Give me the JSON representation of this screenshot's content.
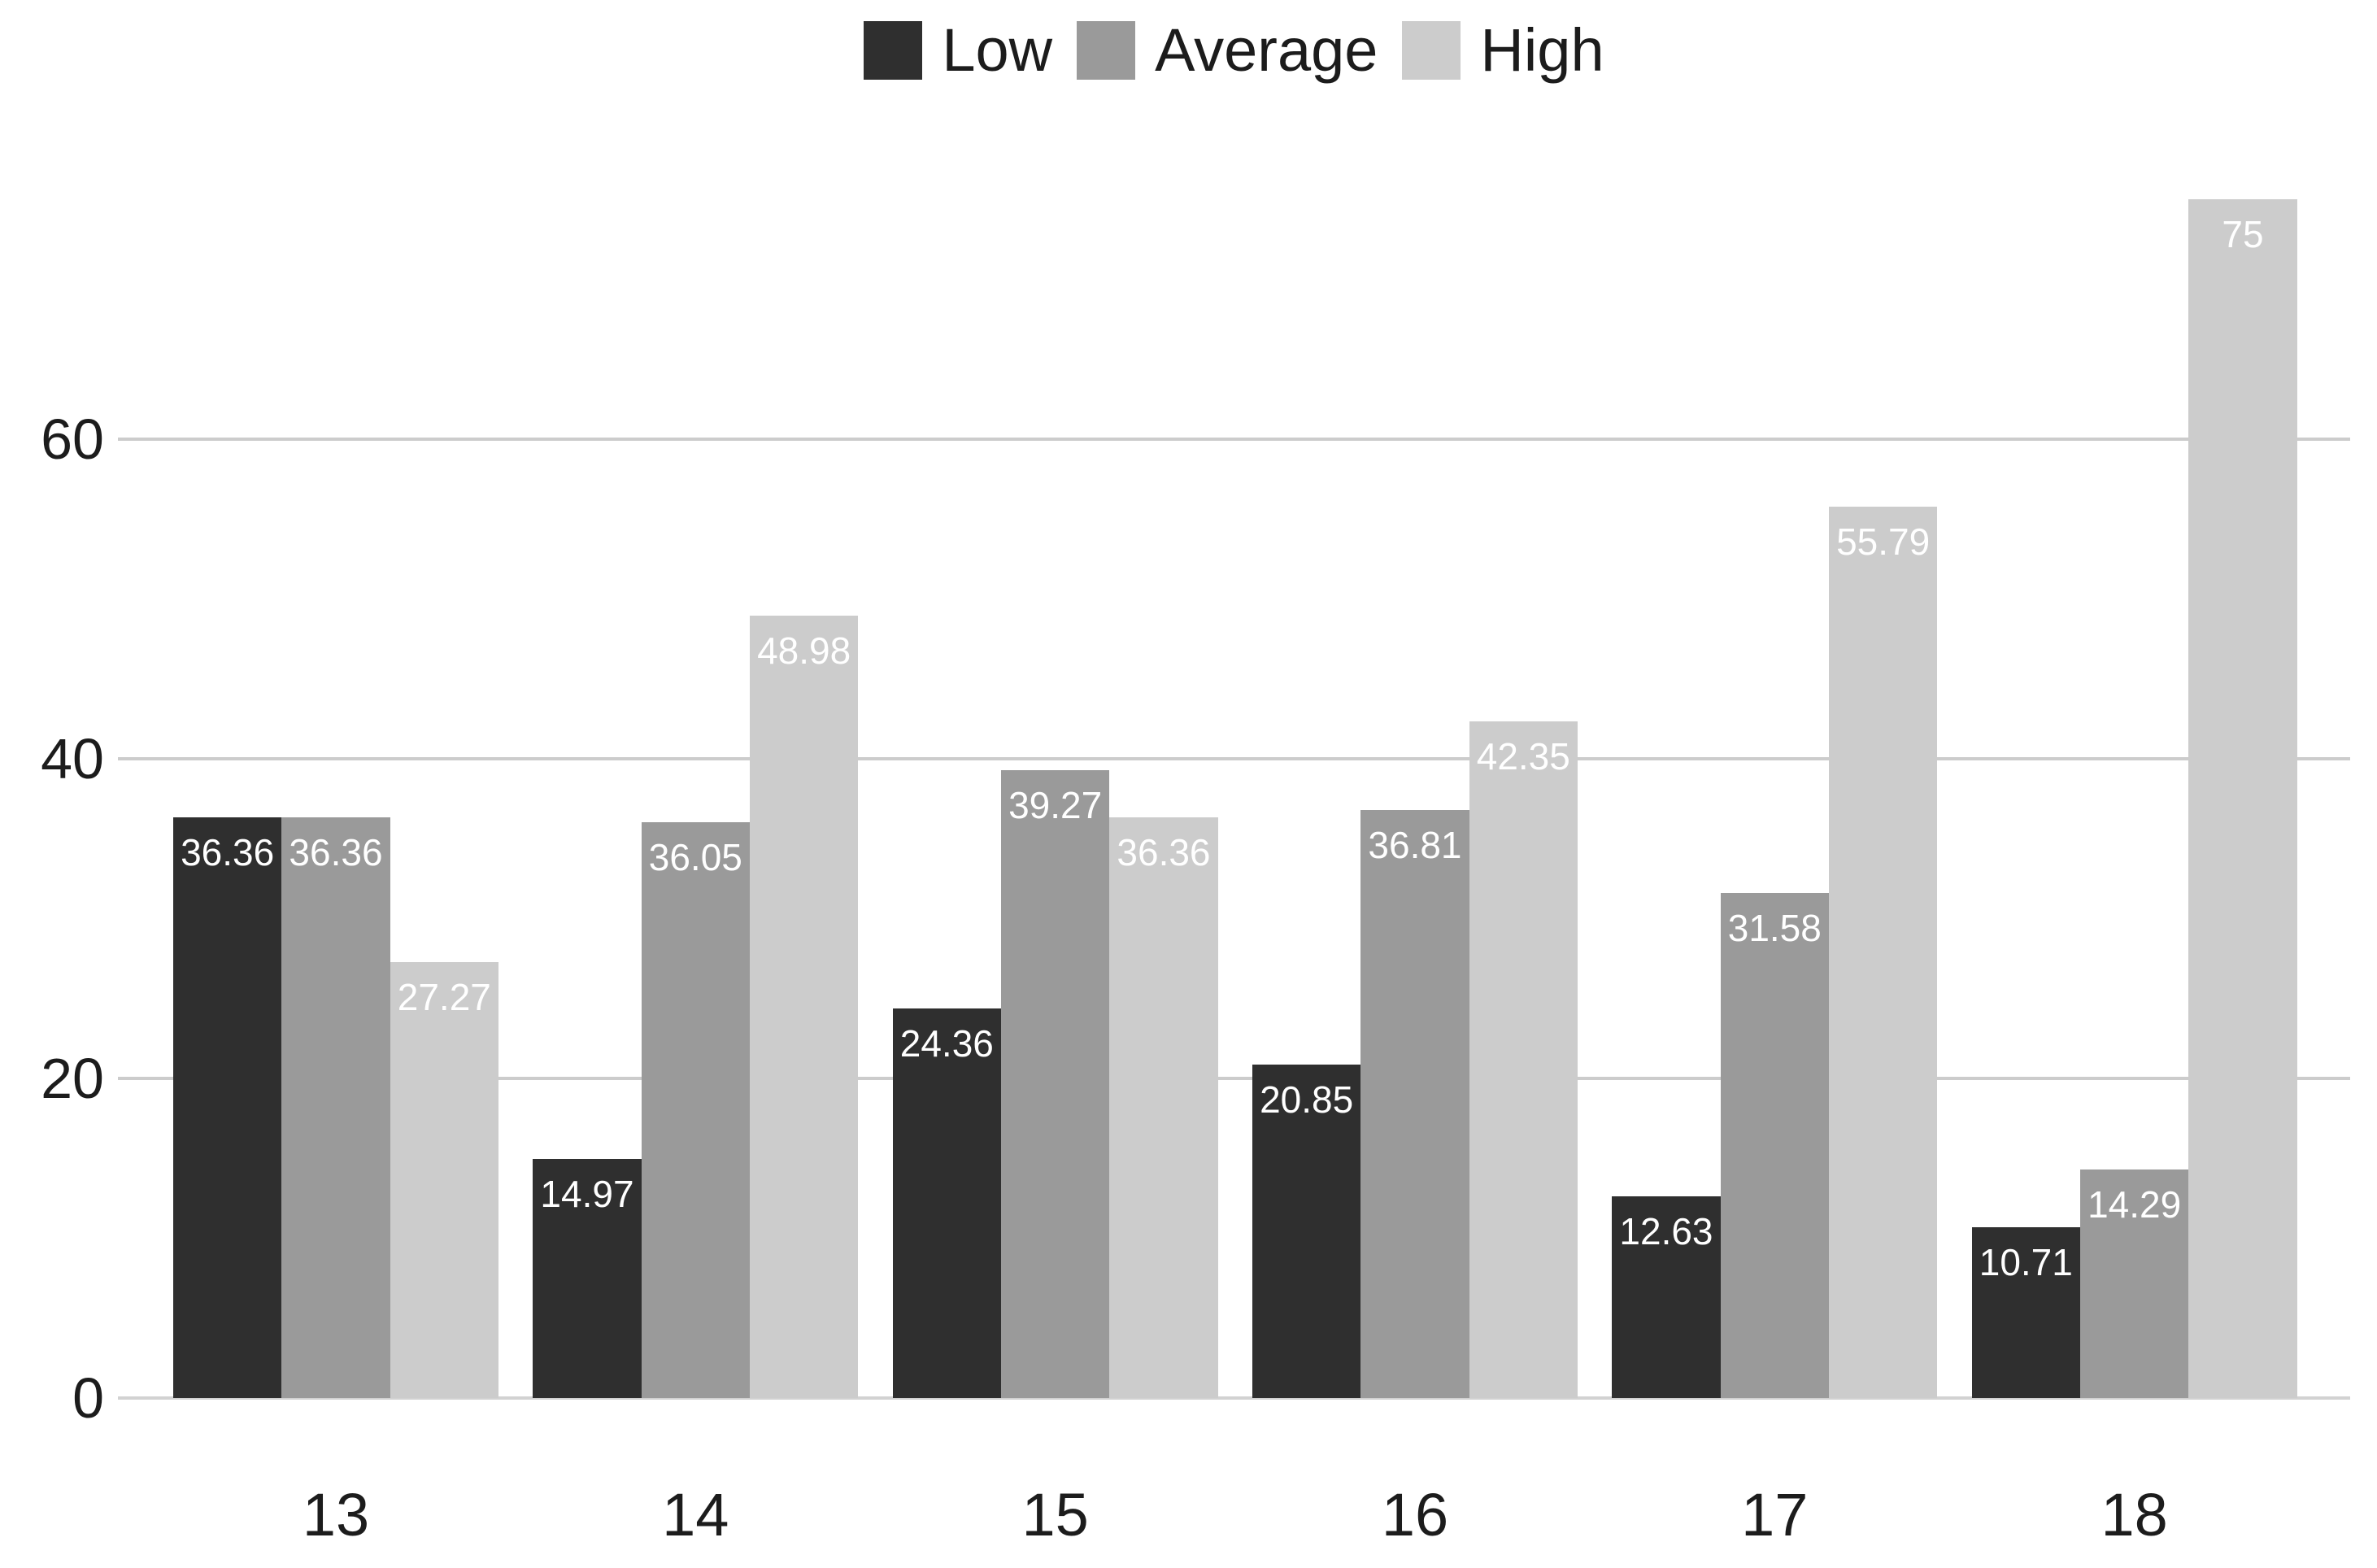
{
  "chart_data": {
    "type": "bar",
    "title": "",
    "xlabel": "",
    "ylabel": "",
    "categories": [
      "13",
      "14",
      "15",
      "16",
      "17",
      "18"
    ],
    "series": [
      {
        "name": "Low",
        "color": "#2f2f2f",
        "values": [
          36.36,
          14.97,
          24.36,
          20.85,
          12.63,
          10.71
        ]
      },
      {
        "name": "Average",
        "color": "#9a9a9a",
        "values": [
          36.36,
          36.05,
          39.27,
          36.81,
          31.58,
          14.29
        ]
      },
      {
        "name": "High",
        "color": "#cccccc",
        "values": [
          27.27,
          48.98,
          36.36,
          42.35,
          55.79,
          75
        ]
      }
    ],
    "yticks": [
      0,
      20,
      40,
      60
    ],
    "ylim": [
      0,
      80
    ],
    "grid": true,
    "legend_position": "top",
    "bar_label_color": "#ffffff",
    "gridline_color": "#cccccc",
    "axis_text_color": "#1c1c1c",
    "background_color": "#ffffff"
  }
}
